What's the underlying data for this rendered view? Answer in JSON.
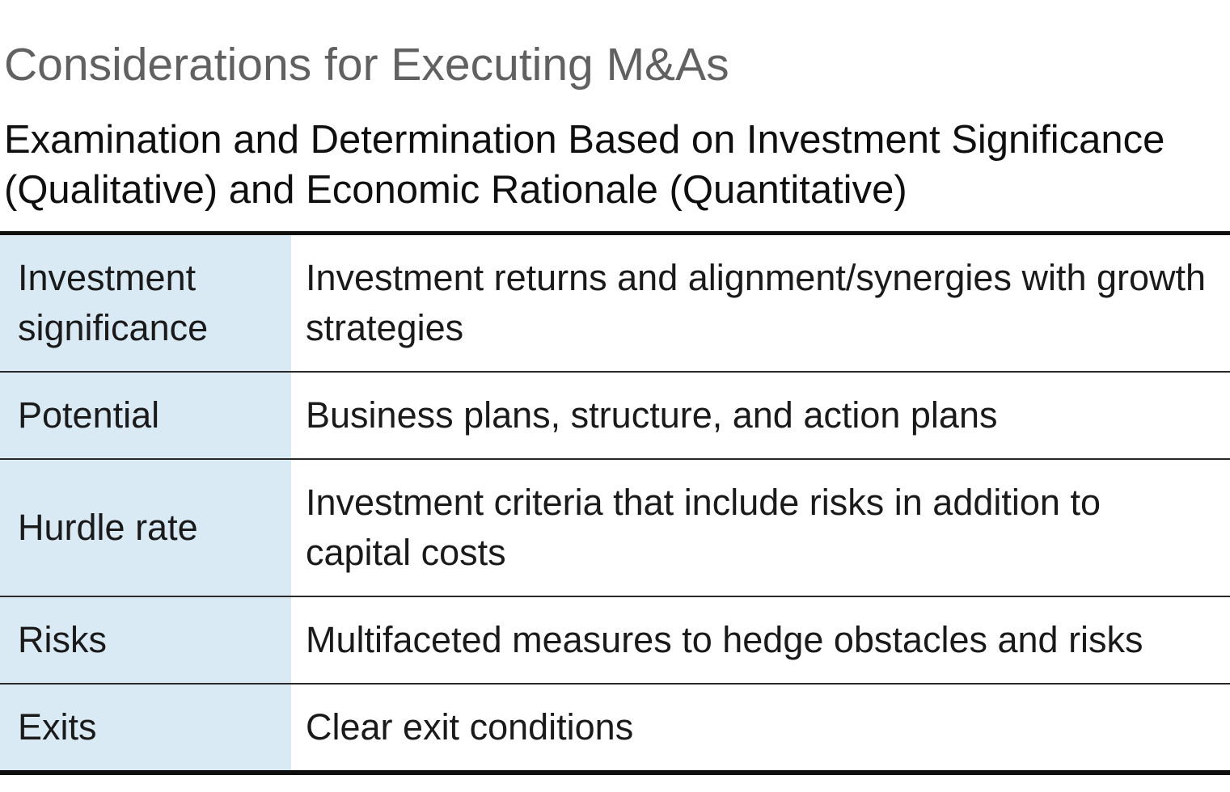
{
  "page": {
    "title": "Considerations for Executing M&As",
    "subtitle_lines": [
      "Examination and Determination Based on Investment Significance",
      "(Qualitative) and Economic Rationale (Quantitative)"
    ]
  },
  "colors": {
    "title_gray": "#616161",
    "body_text": "#1a1a1a",
    "label_cell_blue": "#d9eaf5",
    "table_border_dark": "#0f0f0f"
  },
  "table": {
    "rows": [
      {
        "label": "Investment significance",
        "description": "Investment returns and alignment/synergies with growth strategies"
      },
      {
        "label": "Potential",
        "description": "Business plans, structure, and action plans"
      },
      {
        "label": "Hurdle rate",
        "description": "Investment criteria that include risks in addition to capital costs"
      },
      {
        "label": "Risks",
        "description": "Multifaceted measures to hedge obstacles and risks"
      },
      {
        "label": "Exits",
        "description": "Clear exit conditions"
      }
    ]
  }
}
